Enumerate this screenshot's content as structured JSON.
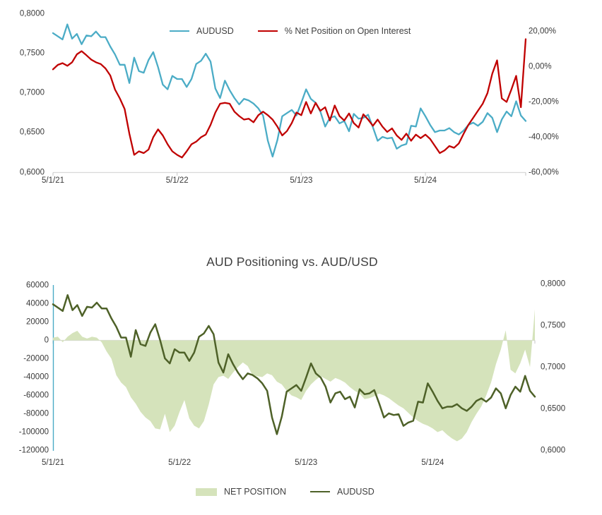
{
  "colors": {
    "audusd_blue": "#4BACC6",
    "net_pct_red": "#C00000",
    "net_area_green": "#D5E3BB",
    "audusd_olive": "#4E6128",
    "axis_line": "#D9D9D9",
    "tick_mark": "#C6C6C6",
    "value_axis_teal": "#4BACC6",
    "text": "#404040"
  },
  "shared_series": {
    "audusd_biweekly": [
      0.776,
      0.772,
      0.768,
      0.787,
      0.769,
      0.775,
      0.762,
      0.773,
      0.772,
      0.778,
      0.771,
      0.771,
      0.759,
      0.749,
      0.736,
      0.736,
      0.713,
      0.745,
      0.728,
      0.726,
      0.742,
      0.752,
      0.733,
      0.711,
      0.705,
      0.722,
      0.718,
      0.718,
      0.708,
      0.718,
      0.737,
      0.741,
      0.75,
      0.74,
      0.706,
      0.694,
      0.716,
      0.704,
      0.694,
      0.686,
      0.693,
      0.691,
      0.687,
      0.681,
      0.672,
      0.64,
      0.62,
      0.641,
      0.671,
      0.675,
      0.679,
      0.672,
      0.688,
      0.705,
      0.693,
      0.688,
      0.677,
      0.658,
      0.669,
      0.671,
      0.662,
      0.665,
      0.652,
      0.674,
      0.668,
      0.669,
      0.673,
      0.657,
      0.64,
      0.645,
      0.643,
      0.644,
      0.63,
      0.634,
      0.636,
      0.659,
      0.658,
      0.681,
      0.671,
      0.66,
      0.651,
      0.653,
      0.653,
      0.656,
      0.651,
      0.648,
      0.653,
      0.66,
      0.663,
      0.659,
      0.664,
      0.675,
      0.669,
      0.651,
      0.667,
      0.677,
      0.671,
      0.69,
      0.672,
      0.665
    ]
  },
  "chart_data": [
    {
      "type": "line",
      "title": "",
      "x_ticks": [
        "5/1/21",
        "5/1/22",
        "5/1/23",
        "5/1/24"
      ],
      "points_per_year": 26,
      "left_axis": {
        "ticks": [
          "0,8000",
          "0,7500",
          "0,7000",
          "0,6500",
          "0,6000"
        ],
        "range": [
          0.6,
          0.8
        ]
      },
      "right_axis": {
        "ticks": [
          "20,00%",
          "0,00%",
          "-20,00%",
          "-40,00%",
          "-60,00%"
        ],
        "range": [
          -60,
          20
        ]
      },
      "legend_position": "top-center",
      "grid": "off",
      "series": [
        {
          "name": "AUDUSD",
          "axis": "left",
          "color": "#4BACC6",
          "values_key": "audusd_biweekly"
        },
        {
          "name": "% Net Position on Open Interest",
          "axis": "right",
          "color": "#C00000",
          "values": [
            -1.5,
            1.0,
            2.0,
            0.5,
            2.5,
            7.0,
            8.8,
            6.5,
            4.0,
            2.5,
            1.5,
            -1.0,
            -5.0,
            -13.0,
            -18.0,
            -24.0,
            -38.0,
            -50.0,
            -48.0,
            -49.0,
            -47.0,
            -40.0,
            -35.5,
            -39.0,
            -44.0,
            -48.0,
            -50.0,
            -51.5,
            -48.0,
            -44.0,
            -42.5,
            -40.0,
            -38.5,
            -33.0,
            -26.0,
            -21.0,
            -20.5,
            -21.0,
            -25.5,
            -28.0,
            -30.0,
            -29.5,
            -31.5,
            -27.5,
            -25.5,
            -27.5,
            -30.0,
            -34.0,
            -39.0,
            -36.5,
            -32.0,
            -26.0,
            -27.5,
            -20.0,
            -26.5,
            -20.5,
            -25.0,
            -23.0,
            -30.5,
            -22.0,
            -28.0,
            -30.5,
            -26.5,
            -32.0,
            -34.5,
            -27.0,
            -30.0,
            -33.5,
            -30.0,
            -34.0,
            -37.0,
            -35.0,
            -39.0,
            -41.5,
            -38.0,
            -42.0,
            -38.5,
            -40.5,
            -38.5,
            -41.0,
            -45.0,
            -49.0,
            -47.5,
            -45.0,
            -46.0,
            -43.5,
            -38.0,
            -33.0,
            -29.0,
            -25.0,
            -21.0,
            -15.0,
            -4.0,
            3.6,
            -18.0,
            -20.0,
            -13.0,
            -5.2,
            -23.0,
            15.6
          ]
        }
      ]
    },
    {
      "type": "area-line",
      "title": "AUD Positioning vs. AUD/USD",
      "x_ticks": [
        "5/1/21",
        "5/1/22",
        "5/1/23",
        "5/1/24"
      ],
      "points_per_year": 26,
      "left_axis": {
        "ticks": [
          "60000",
          "40000",
          "20000",
          "0",
          "-20000",
          "-40000",
          "-60000",
          "-80000",
          "-100000",
          "-120000"
        ],
        "range": [
          -120000,
          60000
        ]
      },
      "right_axis": {
        "ticks": [
          "0,8000",
          "0,7500",
          "0,7000",
          "0,6500",
          "0,6000"
        ],
        "range": [
          0.6,
          0.8
        ]
      },
      "legend_position": "bottom-center",
      "grid": "zero-line-only",
      "series": [
        {
          "name": "NET POSITION",
          "kind": "area",
          "axis": "left",
          "color": "#D5E3BB",
          "values": [
            3000,
            4000,
            -2000,
            4000,
            8000,
            10500,
            4000,
            2000,
            4000,
            3000,
            -2000,
            -12000,
            -20000,
            -38000,
            -46000,
            -51000,
            -62000,
            -69000,
            -78000,
            -84000,
            -88000,
            -96000,
            -97000,
            -80000,
            -100000,
            -93000,
            -78000,
            -65000,
            -85000,
            -93000,
            -96000,
            -88000,
            -70000,
            -48000,
            -40000,
            -38500,
            -42000,
            -35000,
            -29000,
            -24000,
            -28000,
            -38000,
            -39000,
            -40000,
            -36000,
            -38000,
            -45000,
            -48000,
            -55000,
            -60000,
            -62000,
            -65000,
            -55000,
            -48000,
            -43000,
            -39000,
            -42000,
            -45000,
            -41000,
            -43000,
            -46000,
            -51000,
            -55000,
            -58000,
            -64000,
            -63000,
            -61000,
            -58000,
            -60000,
            -63000,
            -67000,
            -71000,
            -74000,
            -79000,
            -84000,
            -88000,
            -91000,
            -93000,
            -96000,
            -100000,
            -98000,
            -103000,
            -107000,
            -110000,
            -107000,
            -100000,
            -89000,
            -80000,
            -72000,
            -60000,
            -46000,
            -26000,
            -10000,
            11000,
            -32000,
            -36000,
            -25000,
            -10000,
            -29000,
            34000
          ]
        },
        {
          "name": "AUDUSD",
          "kind": "line",
          "axis": "right",
          "color": "#4E6128",
          "values_key": "audusd_biweekly"
        }
      ]
    }
  ]
}
